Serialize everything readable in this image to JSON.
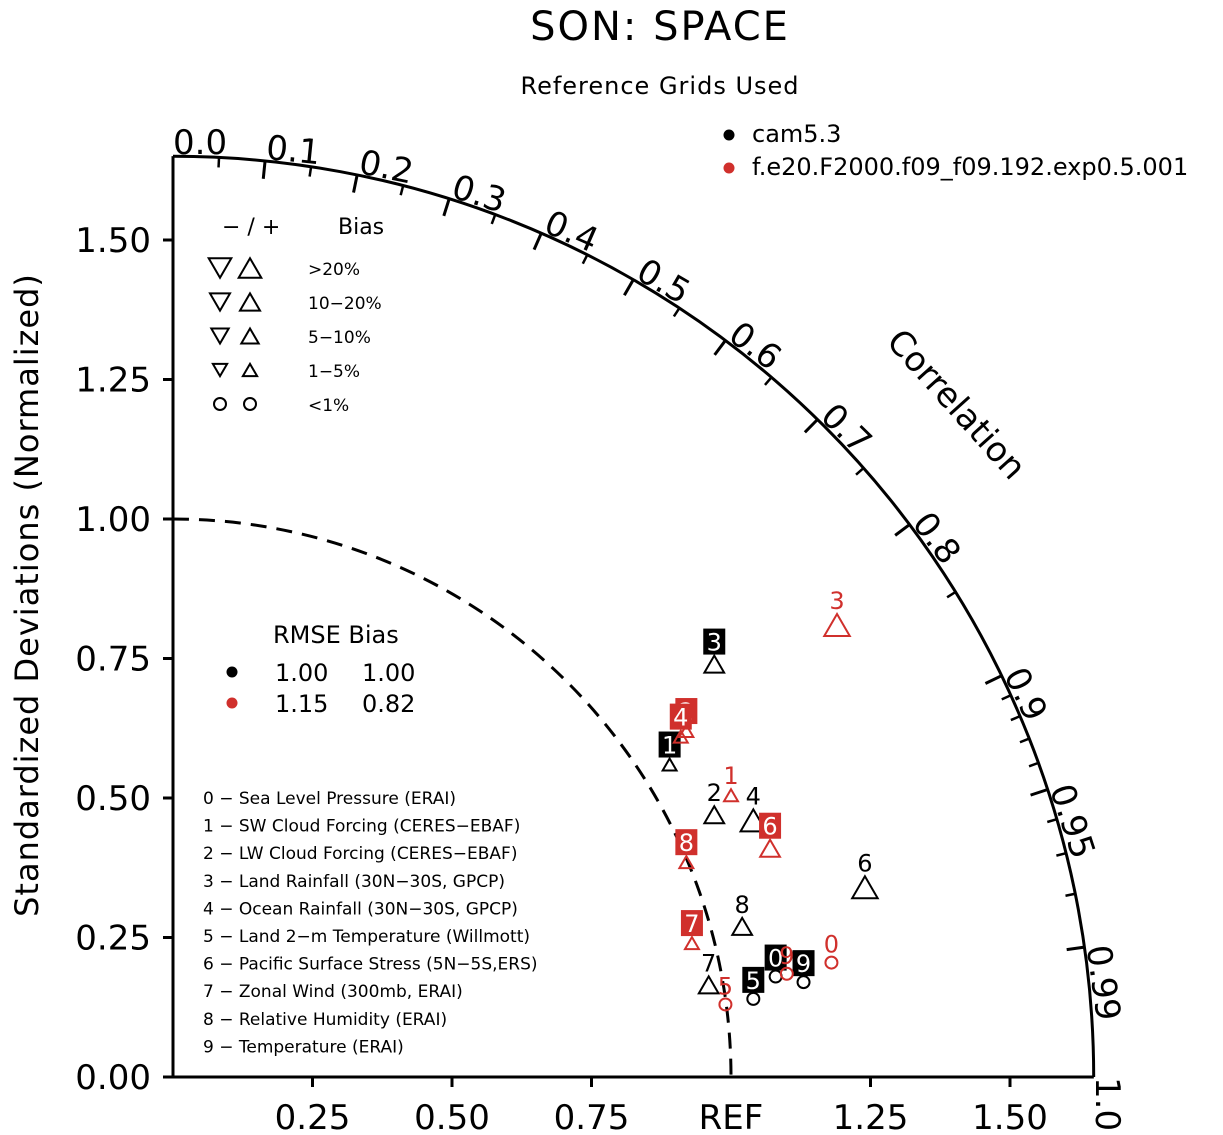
{
  "chart_data": {
    "type": "scatter",
    "subtype": "taylor-diagram",
    "title": "SON: SPACE",
    "subtitle": "Reference Grids Used",
    "ylabel": "Standardized Deviations (Normalized)",
    "corr_axis_label": "Correlation",
    "ref_label": "REF",
    "r_max": 1.65,
    "ref_arc_radius": 1.0,
    "x_ticks": [
      {
        "value": 0.25,
        "label": "0.25"
      },
      {
        "value": 0.5,
        "label": "0.50"
      },
      {
        "value": 0.75,
        "label": "0.75"
      },
      {
        "value": 1.25,
        "label": "1.25"
      },
      {
        "value": 1.5,
        "label": "1.50"
      }
    ],
    "y_ticks": [
      {
        "value": 0.0,
        "label": "0.00"
      },
      {
        "value": 0.25,
        "label": "0.25"
      },
      {
        "value": 0.5,
        "label": "0.50"
      },
      {
        "value": 0.75,
        "label": "0.75"
      },
      {
        "value": 1.0,
        "label": "1.00"
      },
      {
        "value": 1.25,
        "label": "1.25"
      },
      {
        "value": 1.5,
        "label": "1.50"
      }
    ],
    "corr_labels": [
      {
        "value": 0.0,
        "label": "0.0"
      },
      {
        "value": 0.1,
        "label": "0.1"
      },
      {
        "value": 0.2,
        "label": "0.2"
      },
      {
        "value": 0.3,
        "label": "0.3"
      },
      {
        "value": 0.4,
        "label": "0.4"
      },
      {
        "value": 0.5,
        "label": "0.5"
      },
      {
        "value": 0.6,
        "label": "0.6"
      },
      {
        "value": 0.7,
        "label": "0.7"
      },
      {
        "value": 0.8,
        "label": "0.8"
      },
      {
        "value": 0.9,
        "label": "0.9"
      },
      {
        "value": 0.95,
        "label": "0.95"
      },
      {
        "value": 0.99,
        "label": "0.99"
      },
      {
        "value": 1.0,
        "label": "1.0"
      }
    ],
    "corr_minor_ticks": [
      0.05,
      0.15,
      0.25,
      0.35,
      0.45,
      0.55,
      0.65,
      0.75,
      0.85,
      0.91,
      0.92,
      0.93,
      0.94,
      0.96,
      0.97,
      0.98
    ],
    "series": [
      {
        "name": "cam5.3",
        "color": "#000000",
        "rmse": "1.00",
        "bias": "1.00",
        "points": [
          {
            "id": "0",
            "x": 1.08,
            "y": 0.18,
            "marker": "circle",
            "size": 1,
            "label": "0",
            "boxed": true
          },
          {
            "id": "1",
            "x": 0.89,
            "y": 0.56,
            "marker": "up",
            "size": 1,
            "label": "1",
            "boxed": true
          },
          {
            "id": "2",
            "x": 0.97,
            "y": 0.47,
            "marker": "up",
            "size": 2,
            "label": "2",
            "boxed": false
          },
          {
            "id": "3",
            "x": 0.97,
            "y": 0.74,
            "marker": "up",
            "size": 2,
            "label": "3",
            "boxed": true
          },
          {
            "id": "4",
            "x": 1.04,
            "y": 0.46,
            "marker": "up",
            "size": 3,
            "label": "4",
            "boxed": false
          },
          {
            "id": "5",
            "x": 1.04,
            "y": 0.14,
            "marker": "circle",
            "size": 1,
            "label": "5",
            "boxed": true
          },
          {
            "id": "6",
            "x": 1.24,
            "y": 0.34,
            "marker": "up",
            "size": 3,
            "label": "6",
            "boxed": false
          },
          {
            "id": "7",
            "x": 0.96,
            "y": 0.165,
            "marker": "up",
            "size": 2,
            "label": "7",
            "boxed": false
          },
          {
            "id": "8",
            "x": 1.02,
            "y": 0.27,
            "marker": "up",
            "size": 2,
            "label": "8",
            "boxed": false
          },
          {
            "id": "9",
            "x": 1.13,
            "y": 0.17,
            "marker": "circle",
            "size": 1,
            "label": "9",
            "boxed": true
          }
        ]
      },
      {
        "name": "f.e20.F2000.f09_f09.192.exp0.5.001",
        "color": "#d0302c",
        "rmse": "1.15",
        "bias": "0.82",
        "points": [
          {
            "id": "0",
            "x": 1.18,
            "y": 0.205,
            "marker": "circle",
            "size": 1,
            "label": "0",
            "boxed": false
          },
          {
            "id": "1",
            "x": 1.0,
            "y": 0.505,
            "marker": "up",
            "size": 1,
            "label": "1",
            "boxed": false
          },
          {
            "id": "2",
            "x": 0.92,
            "y": 0.62,
            "marker": "up",
            "size": 1,
            "label": "2",
            "boxed": true
          },
          {
            "id": "3",
            "x": 1.19,
            "y": 0.81,
            "marker": "up",
            "size": 3,
            "label": "3",
            "boxed": false
          },
          {
            "id": "4",
            "x": 0.91,
            "y": 0.61,
            "marker": "up",
            "size": 1,
            "label": "4",
            "boxed": true
          },
          {
            "id": "5",
            "x": 0.99,
            "y": 0.13,
            "marker": "circle",
            "size": 1,
            "label": "5",
            "boxed": false
          },
          {
            "id": "6",
            "x": 1.07,
            "y": 0.41,
            "marker": "up",
            "size": 2,
            "label": "6",
            "boxed": true
          },
          {
            "id": "7",
            "x": 0.93,
            "y": 0.24,
            "marker": "up",
            "size": 1,
            "label": "7",
            "boxed": true
          },
          {
            "id": "8",
            "x": 0.92,
            "y": 0.385,
            "marker": "up",
            "size": 1,
            "label": "8",
            "boxed": true
          },
          {
            "id": "9",
            "x": 1.1,
            "y": 0.185,
            "marker": "circle",
            "size": 1,
            "label": "9",
            "boxed": false
          }
        ]
      }
    ],
    "bias_legend": {
      "header_signs": "− / +",
      "header_label": "Bias",
      "rows": [
        {
          "label": ">20%",
          "size": 3,
          "marker": "tri"
        },
        {
          "label": "10−20%",
          "size": 2.5,
          "marker": "tri"
        },
        {
          "label": "5−10%",
          "size": 2,
          "marker": "tri"
        },
        {
          "label": "1−5%",
          "size": 1.4,
          "marker": "tri"
        },
        {
          "label": "<1%",
          "size": 1,
          "marker": "circle"
        }
      ]
    },
    "rmse_bias_header": "RMSE Bias",
    "variables": [
      "0 − Sea Level Pressure (ERAI)",
      "1 − SW Cloud Forcing (CERES−EBAF)",
      "2 − LW Cloud Forcing (CERES−EBAF)",
      "3 − Land Rainfall (30N−30S, GPCP)",
      "4 − Ocean Rainfall (30N−30S, GPCP)",
      "5 − Land 2−m Temperature (Willmott)",
      "6 − Pacific Surface Stress (5N−5S,ERS)",
      "7 − Zonal Wind (300mb, ERAI)",
      "8 − Relative Humidity (ERAI)",
      "9 − Temperature (ERAI)"
    ]
  }
}
